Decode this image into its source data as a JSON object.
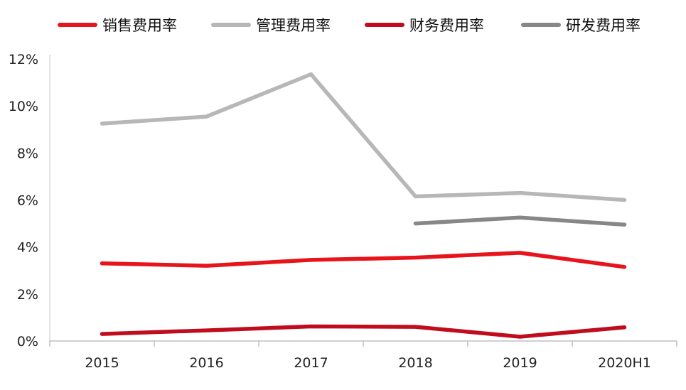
{
  "chart_data": {
    "type": "line",
    "title": "",
    "xlabel": "",
    "ylabel": "",
    "categories": [
      "2015",
      "2016",
      "2017",
      "2018",
      "2019",
      "2020H1"
    ],
    "y_ticks": [
      "0%",
      "2%",
      "4%",
      "6%",
      "8%",
      "10%",
      "12%"
    ],
    "ylim": [
      0,
      12
    ],
    "y_unit": "%",
    "grid": false,
    "legend_position": "top",
    "series": [
      {
        "name": "销售费用率",
        "color": "#e8141c",
        "values": [
          3.3,
          3.2,
          3.45,
          3.55,
          3.75,
          3.15
        ]
      },
      {
        "name": "管理费用率",
        "color": "#b7b7b7",
        "values": [
          9.25,
          9.55,
          11.35,
          6.15,
          6.3,
          6.0
        ]
      },
      {
        "name": "财务费用率",
        "color": "#c00c1c",
        "values": [
          0.3,
          0.45,
          0.62,
          0.6,
          0.18,
          0.58
        ]
      },
      {
        "name": "研发费用率",
        "color": "#878787",
        "values": [
          null,
          null,
          null,
          5.0,
          5.25,
          4.95
        ]
      }
    ]
  }
}
